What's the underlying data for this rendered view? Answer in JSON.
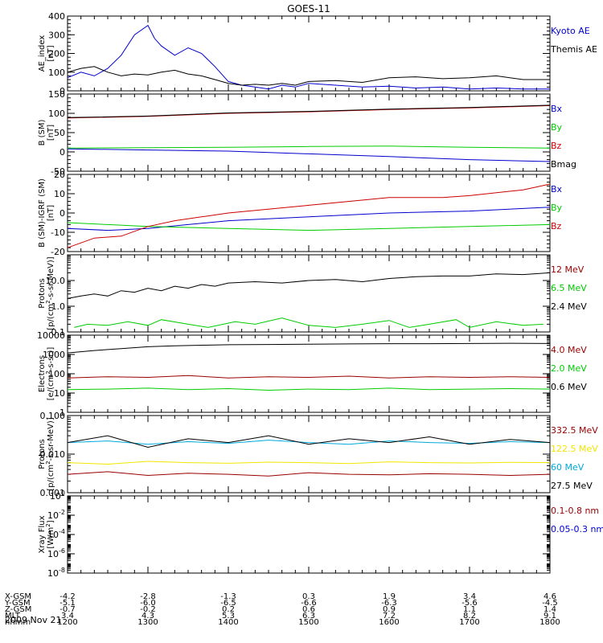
{
  "page": {
    "title": "GOES-11",
    "date": "2009 Nov 21"
  },
  "colors": {
    "black": "#000000",
    "blue": "#0000cc",
    "red": "#cc0000",
    "darkred": "#990000",
    "green": "#00cc00",
    "yellow": "#f2e600",
    "cyan": "#00aadd"
  },
  "chart_data": [
    {
      "type": "line",
      "ylabel": [
        "AE_index",
        "[nT]"
      ],
      "ylim": [
        0,
        400
      ],
      "ticks": [
        0,
        100,
        200,
        300,
        400
      ],
      "tick_labels": [
        "0",
        "100",
        "200",
        "300",
        "400"
      ],
      "series": [
        {
          "name": "Kyoto AE",
          "color": "blue",
          "x": [
            1200,
            1210,
            1220,
            1230,
            1240,
            1250,
            1300,
            1305,
            1310,
            1320,
            1330,
            1340,
            1350,
            1400,
            1410,
            1420,
            1430,
            1440,
            1450,
            1500,
            1520,
            1540,
            1600,
            1620,
            1640,
            1700,
            1720,
            1740,
            1800
          ],
          "y": [
            70,
            100,
            80,
            120,
            190,
            300,
            350,
            280,
            240,
            190,
            230,
            200,
            130,
            50,
            30,
            20,
            10,
            30,
            20,
            40,
            30,
            20,
            25,
            15,
            20,
            10,
            15,
            10,
            10
          ]
        },
        {
          "name": "Themis AE",
          "color": "black",
          "x": [
            1200,
            1210,
            1220,
            1230,
            1240,
            1250,
            1300,
            1310,
            1320,
            1330,
            1340,
            1350,
            1400,
            1410,
            1420,
            1430,
            1440,
            1450,
            1500,
            1520,
            1540,
            1600,
            1620,
            1640,
            1700,
            1720,
            1740,
            1800
          ],
          "y": [
            100,
            120,
            130,
            100,
            80,
            90,
            85,
            100,
            110,
            90,
            80,
            60,
            40,
            30,
            35,
            30,
            40,
            30,
            50,
            55,
            45,
            70,
            75,
            65,
            70,
            80,
            60,
            60
          ]
        }
      ]
    },
    {
      "type": "line",
      "ylabel": [
        "B (SM)",
        "[nT]"
      ],
      "ylim": [
        -50,
        150
      ],
      "ticks": [
        -50,
        0,
        50,
        100,
        150
      ],
      "tick_labels": [
        "-50",
        "0",
        "50",
        "100",
        "150"
      ],
      "series": [
        {
          "name": "Bx",
          "color": "blue",
          "x": [
            1200,
            1300,
            1400,
            1500,
            1600,
            1700,
            1800
          ],
          "y": [
            8,
            5,
            2,
            -5,
            -12,
            -20,
            -25
          ]
        },
        {
          "name": "By",
          "color": "green",
          "x": [
            1200,
            1300,
            1400,
            1500,
            1600,
            1700,
            1800
          ],
          "y": [
            10,
            11,
            12,
            14,
            15,
            12,
            10
          ]
        },
        {
          "name": "Bz",
          "color": "red",
          "x": [
            1200,
            1300,
            1400,
            1500,
            1600,
            1700,
            1800
          ],
          "y": [
            88,
            92,
            100,
            104,
            110,
            114,
            120
          ]
        },
        {
          "name": "Bmag",
          "color": "black",
          "x": [
            1200,
            1300,
            1400,
            1500,
            1600,
            1700,
            1800
          ],
          "y": [
            89,
            93,
            101,
            105,
            111,
            115,
            121
          ]
        }
      ]
    },
    {
      "type": "line",
      "ylabel": [
        "B (SM)-IGRF (SM)",
        "[nT]"
      ],
      "ylim": [
        -20,
        20
      ],
      "ticks": [
        -20,
        -10,
        0,
        10,
        20
      ],
      "tick_labels": [
        "-20",
        "-10",
        "0",
        "10",
        "20"
      ],
      "series": [
        {
          "name": "Bx",
          "color": "blue",
          "x": [
            1200,
            1230,
            1300,
            1330,
            1400,
            1500,
            1600,
            1700,
            1800
          ],
          "y": [
            -8,
            -9,
            -8,
            -6,
            -4,
            -2,
            0,
            1,
            3
          ]
        },
        {
          "name": "By",
          "color": "green",
          "x": [
            1200,
            1230,
            1300,
            1400,
            1500,
            1600,
            1700,
            1800
          ],
          "y": [
            -5,
            -6,
            -7,
            -8,
            -9,
            -8,
            -7,
            -6
          ]
        },
        {
          "name": "Bz",
          "color": "red",
          "x": [
            1200,
            1220,
            1240,
            1300,
            1320,
            1400,
            1500,
            1600,
            1640,
            1700,
            1740,
            1800
          ],
          "y": [
            -18,
            -13,
            -12,
            -7,
            -4,
            0,
            4,
            8,
            8,
            9,
            12,
            15
          ]
        }
      ]
    },
    {
      "type": "line",
      "scale": "log",
      "ylabel": [
        "Protons",
        "[p/(cm^2-s-sr-MeV)]"
      ],
      "ylim": [
        0.1,
        100
      ],
      "ticks": [
        0.1,
        1,
        10
      ],
      "tick_labels": [
        "0.1",
        "1.0",
        "10.0"
      ],
      "series": [
        {
          "name": "12 MeV",
          "color": "darkred",
          "x": [],
          "y": []
        },
        {
          "name": "6.5 MeV",
          "color": "green",
          "x": [
            1205,
            1215,
            1230,
            1245,
            1300,
            1310,
            1330,
            1345,
            1405,
            1420,
            1440,
            1500,
            1520,
            1540,
            1600,
            1615,
            1630,
            1650,
            1700,
            1720,
            1740,
            1755
          ],
          "y": [
            0.15,
            0.2,
            0.18,
            0.25,
            0.18,
            0.3,
            0.2,
            0.15,
            0.25,
            0.2,
            0.35,
            0.18,
            0.15,
            0.2,
            0.28,
            0.15,
            0.2,
            0.3,
            0.15,
            0.25,
            0.18,
            0.2
          ]
        },
        {
          "name": "2.4 MeV",
          "color": "black",
          "x": [
            1200,
            1210,
            1220,
            1230,
            1240,
            1250,
            1300,
            1310,
            1320,
            1330,
            1340,
            1350,
            1400,
            1420,
            1440,
            1500,
            1520,
            1540,
            1600,
            1620,
            1640,
            1700,
            1720,
            1740,
            1800
          ],
          "y": [
            2,
            2.5,
            3,
            2.5,
            4,
            3.5,
            5,
            4,
            6,
            5,
            7,
            6,
            8,
            9,
            8,
            10,
            11,
            9,
            12,
            14,
            15,
            15,
            18,
            17,
            20
          ]
        }
      ]
    },
    {
      "type": "line",
      "scale": "log",
      "ylabel": [
        "Electrons",
        "[e/(cm^2-s-sr)]"
      ],
      "ylim": [
        1,
        10000
      ],
      "ticks": [
        1,
        10,
        100,
        1000,
        10000
      ],
      "tick_labels": [
        "1",
        "10",
        "100",
        "1000",
        "10000"
      ],
      "series": [
        {
          "name": "4.0 MeV",
          "color": "darkred",
          "x": [
            1200,
            1230,
            1300,
            1330,
            1400,
            1430,
            1500,
            1530,
            1600,
            1630,
            1700,
            1730,
            1800
          ],
          "y": [
            60,
            70,
            65,
            80,
            60,
            70,
            65,
            75,
            60,
            70,
            65,
            70,
            65
          ]
        },
        {
          "name": "2.0 MeV",
          "color": "green",
          "x": [
            1200,
            1230,
            1300,
            1330,
            1400,
            1430,
            1500,
            1530,
            1600,
            1630,
            1700,
            1730,
            1800
          ],
          "y": [
            15,
            16,
            18,
            15,
            17,
            14,
            16,
            15,
            18,
            15,
            16,
            17,
            16
          ]
        },
        {
          "name": "0.6 MeV",
          "color": "black",
          "x": [
            1200,
            1220,
            1240,
            1300,
            1320,
            1340,
            1400,
            1430,
            1500,
            1530,
            1600,
            1630,
            1700,
            1730,
            1800
          ],
          "y": [
            1200,
            1600,
            2000,
            2500,
            2800,
            3000,
            3200,
            3300,
            3400,
            3500,
            3600,
            3600,
            3700,
            3800,
            3700
          ]
        }
      ]
    },
    {
      "type": "line",
      "scale": "log",
      "ylabel": [
        "Protons",
        "[p/(cm^2-s-sr-MeV)]"
      ],
      "ylim": [
        0.001,
        0.1
      ],
      "ticks": [
        0.001,
        0.01,
        0.1
      ],
      "tick_labels": [
        "0.001",
        "0.010",
        "0.100"
      ],
      "series": [
        {
          "name": "332.5 MeV",
          "color": "darkred",
          "x": [
            1200,
            1230,
            1300,
            1330,
            1400,
            1430,
            1500,
            1530,
            1600,
            1630,
            1700,
            1730,
            1800
          ],
          "y": [
            0.003,
            0.0035,
            0.0028,
            0.0032,
            0.003,
            0.0027,
            0.0033,
            0.003,
            0.0029,
            0.0031,
            0.003,
            0.0028,
            0.003
          ]
        },
        {
          "name": "122.5 MeV",
          "color": "yellow",
          "x": [
            1200,
            1230,
            1300,
            1330,
            1400,
            1430,
            1500,
            1530,
            1600,
            1630,
            1700,
            1730,
            1800
          ],
          "y": [
            0.006,
            0.0055,
            0.0065,
            0.006,
            0.0058,
            0.0062,
            0.006,
            0.0057,
            0.0063,
            0.006,
            0.0059,
            0.0061,
            0.006
          ]
        },
        {
          "name": "60 MeV",
          "color": "cyan",
          "x": [
            1200,
            1230,
            1300,
            1330,
            1400,
            1430,
            1500,
            1530,
            1600,
            1630,
            1700,
            1730,
            1800
          ],
          "y": [
            0.02,
            0.022,
            0.018,
            0.021,
            0.019,
            0.023,
            0.02,
            0.018,
            0.022,
            0.02,
            0.019,
            0.021,
            0.02
          ]
        },
        {
          "name": "27.5 MeV",
          "color": "black",
          "x": [
            1200,
            1230,
            1300,
            1330,
            1400,
            1430,
            1500,
            1530,
            1600,
            1630,
            1700,
            1730,
            1800
          ],
          "y": [
            0.02,
            0.03,
            0.015,
            0.025,
            0.02,
            0.03,
            0.018,
            0.025,
            0.02,
            0.028,
            0.018,
            0.024,
            0.02
          ]
        }
      ]
    },
    {
      "type": "line",
      "scale": "log",
      "ylabel": [
        "Xray Flux",
        "[W/m^2]"
      ],
      "ylim": [
        1e-08,
        1
      ],
      "ticks": [
        1e-08,
        1e-06,
        0.0001,
        0.01,
        1
      ],
      "tick_labels": [
        "10^-8",
        "10^-6",
        "10^-4",
        "10^-2",
        "10^0"
      ],
      "series": [
        {
          "name": "0.1-0.8 nm",
          "color": "darkred",
          "x": [],
          "y": []
        },
        {
          "name": "0.05-0.3 nm",
          "color": "blue",
          "x": [],
          "y": []
        }
      ]
    }
  ],
  "x_axis": {
    "xlim": [
      1200,
      1800
    ],
    "major": [
      1200,
      1300,
      1400,
      1500,
      1600,
      1700,
      1800
    ],
    "rows": [
      {
        "label": "X-GSM",
        "values": [
          "-4.2",
          "-2.8",
          "-1.3",
          "0.3",
          "1.9",
          "3.4",
          "4.6"
        ]
      },
      {
        "label": "Y-GSM",
        "values": [
          "-5.1",
          "-6.0",
          "-6.5",
          "-6.6",
          "-6.3",
          "-5.6",
          "-4.5"
        ]
      },
      {
        "label": "Z-GSM",
        "values": [
          "-0.7",
          "-0.2",
          "0.2",
          "0.6",
          "0.9",
          "1.1",
          "1.4"
        ]
      },
      {
        "label": "MLT",
        "values": [
          "3.4",
          "4.3",
          "5.3",
          "6.3",
          "7.2",
          "8.2",
          "9.1"
        ]
      },
      {
        "label": "hhmm",
        "values": [
          "1200",
          "1300",
          "1400",
          "1500",
          "1600",
          "1700",
          "1800"
        ]
      }
    ]
  }
}
